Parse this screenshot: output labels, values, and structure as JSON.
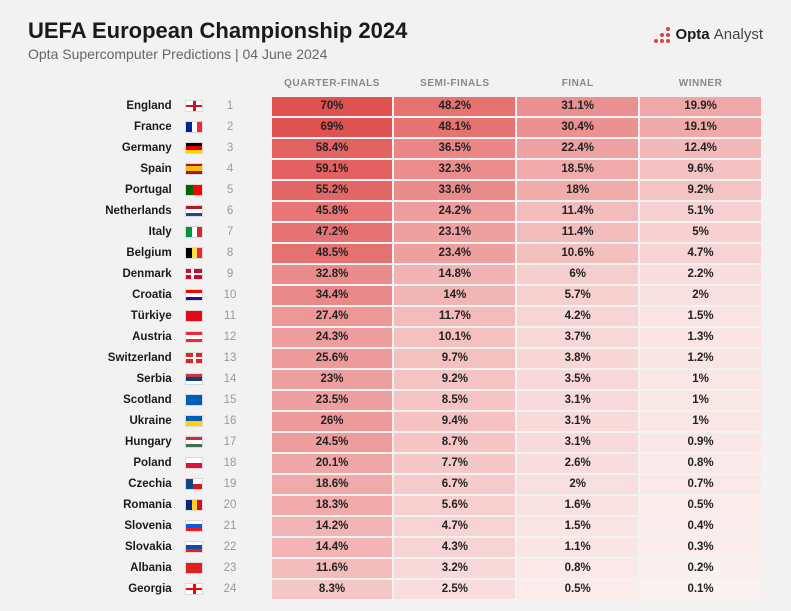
{
  "header": {
    "title": "UEFA European Championship 2024",
    "subtitle": "Opta Supercomputer Predictions | 04 June 2024",
    "logo_main": "Opta",
    "logo_sub": "Analyst",
    "logo_color": "#e2403f"
  },
  "columns": [
    "QUARTER-FINALS",
    "SEMI-FINALS",
    "FINAL",
    "WINNER"
  ],
  "color_scale": {
    "hue": 0,
    "sat": 70,
    "light_min": 60,
    "light_max": 97,
    "val_min": 0.1,
    "val_max": 70
  },
  "flags": {
    "England": [
      [
        "h-stripe",
        "#ffffff",
        "0",
        "100%"
      ],
      [
        "h-stripe",
        "#ce1124",
        "40%",
        "20%"
      ],
      [
        "v-stripe",
        "#ce1124",
        "40%",
        "20%"
      ]
    ],
    "France": [
      [
        "v-stripe",
        "#002395",
        "0",
        "33.4%"
      ],
      [
        "v-stripe",
        "#ffffff",
        "33.3%",
        "33.4%"
      ],
      [
        "v-stripe",
        "#ed2939",
        "66.6%",
        "33.4%"
      ]
    ],
    "Germany": [
      [
        "h-stripe",
        "#000000",
        "0",
        "33.4%"
      ],
      [
        "h-stripe",
        "#dd0000",
        "33.3%",
        "33.4%"
      ],
      [
        "h-stripe",
        "#ffce00",
        "66.6%",
        "33.4%"
      ]
    ],
    "Spain": [
      [
        "h-stripe",
        "#aa151b",
        "0",
        "25%"
      ],
      [
        "h-stripe",
        "#f1bf00",
        "25%",
        "50%"
      ],
      [
        "h-stripe",
        "#aa151b",
        "75%",
        "25%"
      ]
    ],
    "Portugal": [
      [
        "v-stripe",
        "#006600",
        "0",
        "40%"
      ],
      [
        "v-stripe",
        "#ff0000",
        "40%",
        "60%"
      ]
    ],
    "Netherlands": [
      [
        "h-stripe",
        "#ae1c28",
        "0",
        "33.4%"
      ],
      [
        "h-stripe",
        "#ffffff",
        "33.3%",
        "33.4%"
      ],
      [
        "h-stripe",
        "#21468b",
        "66.6%",
        "33.4%"
      ]
    ],
    "Italy": [
      [
        "v-stripe",
        "#009246",
        "0",
        "33.4%"
      ],
      [
        "v-stripe",
        "#ffffff",
        "33.3%",
        "33.4%"
      ],
      [
        "v-stripe",
        "#ce2b37",
        "66.6%",
        "33.4%"
      ]
    ],
    "Belgium": [
      [
        "v-stripe",
        "#000000",
        "0",
        "33.4%"
      ],
      [
        "v-stripe",
        "#fae042",
        "33.3%",
        "33.4%"
      ],
      [
        "v-stripe",
        "#ed2939",
        "66.6%",
        "33.4%"
      ]
    ],
    "Denmark": [
      [
        "h-stripe",
        "#c60c30",
        "0",
        "100%"
      ],
      [
        "h-stripe",
        "#ffffff",
        "40%",
        "20%"
      ],
      [
        "v-stripe",
        "#ffffff",
        "30%",
        "18%"
      ]
    ],
    "Croatia": [
      [
        "h-stripe",
        "#ff0000",
        "0",
        "33.4%"
      ],
      [
        "h-stripe",
        "#ffffff",
        "33.3%",
        "33.4%"
      ],
      [
        "h-stripe",
        "#171796",
        "66.6%",
        "33.4%"
      ]
    ],
    "Türkiye": [
      [
        "h-stripe",
        "#e30a17",
        "0",
        "100%"
      ]
    ],
    "Austria": [
      [
        "h-stripe",
        "#ed2939",
        "0",
        "33.4%"
      ],
      [
        "h-stripe",
        "#ffffff",
        "33.3%",
        "33.4%"
      ],
      [
        "h-stripe",
        "#ed2939",
        "66.6%",
        "33.4%"
      ]
    ],
    "Switzerland": [
      [
        "h-stripe",
        "#d52b1e",
        "0",
        "100%"
      ],
      [
        "h-stripe",
        "#ffffff",
        "40%",
        "20%"
      ],
      [
        "v-stripe",
        "#ffffff",
        "40%",
        "20%"
      ]
    ],
    "Serbia": [
      [
        "h-stripe",
        "#c6363c",
        "0",
        "33.4%"
      ],
      [
        "h-stripe",
        "#0c4076",
        "33.3%",
        "33.4%"
      ],
      [
        "h-stripe",
        "#ffffff",
        "66.6%",
        "33.4%"
      ]
    ],
    "Scotland": [
      [
        "h-stripe",
        "#005eb8",
        "0",
        "100%"
      ]
    ],
    "Ukraine": [
      [
        "h-stripe",
        "#005bbb",
        "0",
        "50%"
      ],
      [
        "h-stripe",
        "#ffd500",
        "50%",
        "50%"
      ]
    ],
    "Hungary": [
      [
        "h-stripe",
        "#cd2a3e",
        "0",
        "33.4%"
      ],
      [
        "h-stripe",
        "#ffffff",
        "33.3%",
        "33.4%"
      ],
      [
        "h-stripe",
        "#436f4d",
        "66.6%",
        "33.4%"
      ]
    ],
    "Poland": [
      [
        "h-stripe",
        "#ffffff",
        "0",
        "50%"
      ],
      [
        "h-stripe",
        "#dc143c",
        "50%",
        "50%"
      ]
    ],
    "Czechia": [
      [
        "h-stripe",
        "#ffffff",
        "0",
        "50%"
      ],
      [
        "h-stripe",
        "#d7141a",
        "50%",
        "50%"
      ],
      [
        "v-stripe",
        "#11457e",
        "0",
        "40%"
      ]
    ],
    "Romania": [
      [
        "v-stripe",
        "#002b7f",
        "0",
        "33.4%"
      ],
      [
        "v-stripe",
        "#fcd116",
        "33.3%",
        "33.4%"
      ],
      [
        "v-stripe",
        "#ce1126",
        "66.6%",
        "33.4%"
      ]
    ],
    "Slovenia": [
      [
        "h-stripe",
        "#ffffff",
        "0",
        "33.4%"
      ],
      [
        "h-stripe",
        "#005ce5",
        "33.3%",
        "33.4%"
      ],
      [
        "h-stripe",
        "#ed1c24",
        "66.6%",
        "33.4%"
      ]
    ],
    "Slovakia": [
      [
        "h-stripe",
        "#ffffff",
        "0",
        "33.4%"
      ],
      [
        "h-stripe",
        "#0b4ea2",
        "33.3%",
        "33.4%"
      ],
      [
        "h-stripe",
        "#ee1c25",
        "66.6%",
        "33.4%"
      ]
    ],
    "Albania": [
      [
        "h-stripe",
        "#e41e20",
        "0",
        "100%"
      ]
    ],
    "Georgia": [
      [
        "h-stripe",
        "#ffffff",
        "0",
        "100%"
      ],
      [
        "h-stripe",
        "#ff0000",
        "40%",
        "20%"
      ],
      [
        "v-stripe",
        "#ff0000",
        "40%",
        "20%"
      ]
    ]
  },
  "rows": [
    {
      "country": "England",
      "rank": 1,
      "vals": [
        70,
        48.2,
        31.1,
        19.9
      ]
    },
    {
      "country": "France",
      "rank": 2,
      "vals": [
        69,
        48.1,
        30.4,
        19.1
      ]
    },
    {
      "country": "Germany",
      "rank": 3,
      "vals": [
        58.4,
        36.5,
        22.4,
        12.4
      ]
    },
    {
      "country": "Spain",
      "rank": 4,
      "vals": [
        59.1,
        32.3,
        18.5,
        9.6
      ]
    },
    {
      "country": "Portugal",
      "rank": 5,
      "vals": [
        55.2,
        33.6,
        18,
        9.2
      ]
    },
    {
      "country": "Netherlands",
      "rank": 6,
      "vals": [
        45.8,
        24.2,
        11.4,
        5.1
      ]
    },
    {
      "country": "Italy",
      "rank": 7,
      "vals": [
        47.2,
        23.1,
        11.4,
        5
      ]
    },
    {
      "country": "Belgium",
      "rank": 8,
      "vals": [
        48.5,
        23.4,
        10.6,
        4.7
      ]
    },
    {
      "country": "Denmark",
      "rank": 9,
      "vals": [
        32.8,
        14.8,
        6,
        2.2
      ]
    },
    {
      "country": "Croatia",
      "rank": 10,
      "vals": [
        34.4,
        14,
        5.7,
        2
      ]
    },
    {
      "country": "Türkiye",
      "rank": 11,
      "vals": [
        27.4,
        11.7,
        4.2,
        1.5
      ]
    },
    {
      "country": "Austria",
      "rank": 12,
      "vals": [
        24.3,
        10.1,
        3.7,
        1.3
      ]
    },
    {
      "country": "Switzerland",
      "rank": 13,
      "vals": [
        25.6,
        9.7,
        3.8,
        1.2
      ]
    },
    {
      "country": "Serbia",
      "rank": 14,
      "vals": [
        23,
        9.2,
        3.5,
        1
      ]
    },
    {
      "country": "Scotland",
      "rank": 15,
      "vals": [
        23.5,
        8.5,
        3.1,
        1
      ]
    },
    {
      "country": "Ukraine",
      "rank": 16,
      "vals": [
        26,
        9.4,
        3.1,
        1
      ]
    },
    {
      "country": "Hungary",
      "rank": 17,
      "vals": [
        24.5,
        8.7,
        3.1,
        0.9
      ]
    },
    {
      "country": "Poland",
      "rank": 18,
      "vals": [
        20.1,
        7.7,
        2.6,
        0.8
      ]
    },
    {
      "country": "Czechia",
      "rank": 19,
      "vals": [
        18.6,
        6.7,
        2,
        0.7
      ]
    },
    {
      "country": "Romania",
      "rank": 20,
      "vals": [
        18.3,
        5.6,
        1.6,
        0.5
      ]
    },
    {
      "country": "Slovenia",
      "rank": 21,
      "vals": [
        14.2,
        4.7,
        1.5,
        0.4
      ]
    },
    {
      "country": "Slovakia",
      "rank": 22,
      "vals": [
        14.4,
        4.3,
        1.1,
        0.3
      ]
    },
    {
      "country": "Albania",
      "rank": 23,
      "vals": [
        11.6,
        3.2,
        0.8,
        0.2
      ]
    },
    {
      "country": "Georgia",
      "rank": 24,
      "vals": [
        8.3,
        2.5,
        0.5,
        0.1
      ]
    }
  ]
}
